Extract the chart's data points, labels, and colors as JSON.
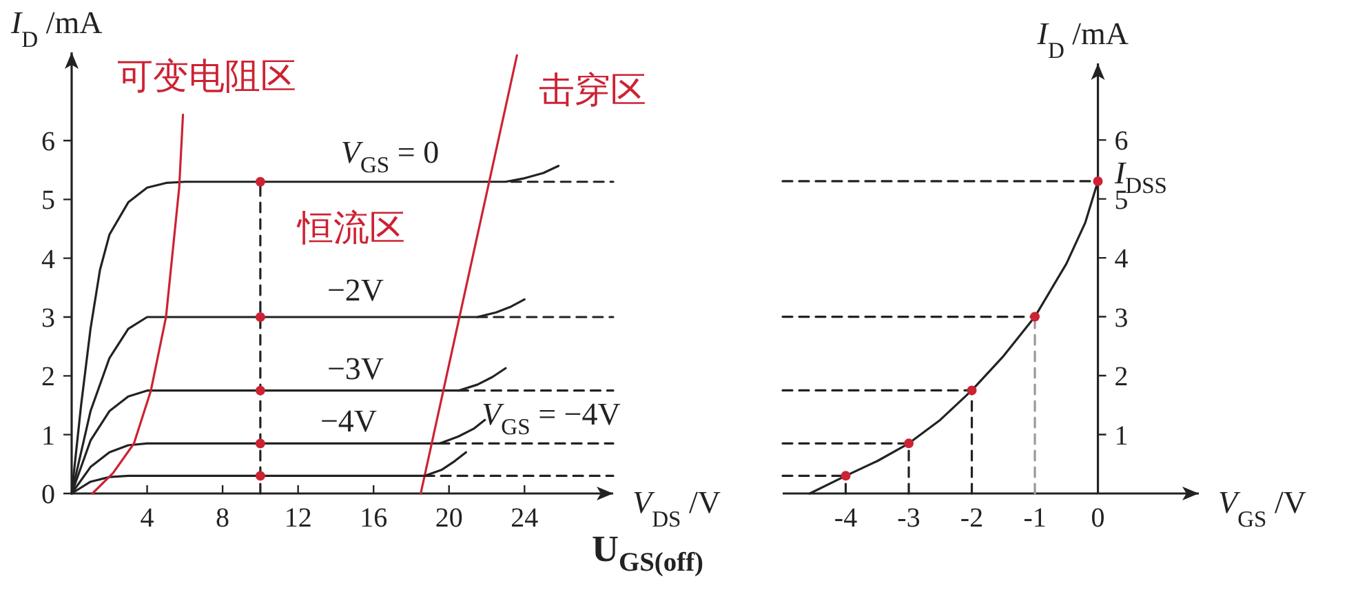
{
  "chart_data": [
    {
      "type": "line",
      "xlabel": "*V*$_{DS}$ /V",
      "ylabel": "*I*$_{D}$ /mA",
      "xlim": [
        0,
        28.7
      ],
      "ylim": [
        0,
        7.5
      ],
      "xticks": [
        4,
        8,
        12,
        16,
        20,
        24
      ],
      "yticks": [
        0,
        1,
        2,
        3,
        4,
        5,
        6
      ],
      "series": [
        {
          "color": "#222222",
          "x": [
            0,
            0.5,
            1,
            1.5,
            2,
            3,
            4,
            5,
            6,
            23,
            24,
            25,
            25.8
          ],
          "values": [
            0,
            1.5,
            2.8,
            3.8,
            4.4,
            4.95,
            5.2,
            5.28,
            5.3,
            5.3,
            5.36,
            5.45,
            5.57
          ]
        },
        {
          "type": "line",
          "color": "#222222",
          "x": [
            0,
            1,
            2,
            3,
            4,
            21.5,
            22.5,
            23.3,
            24
          ],
          "values": [
            0,
            1.4,
            2.3,
            2.8,
            3.0,
            3.0,
            3.08,
            3.18,
            3.3
          ]
        },
        {
          "type": "line",
          "color": "#222222",
          "x": [
            0,
            1,
            2,
            3,
            4,
            20.5,
            21.5,
            22.3,
            23
          ],
          "values": [
            0,
            0.9,
            1.4,
            1.65,
            1.75,
            1.75,
            1.85,
            1.98,
            2.13
          ]
        },
        {
          "type": "line",
          "color": "#222222",
          "x": [
            0,
            1,
            2,
            3,
            4,
            19.5,
            20.5,
            21.3,
            21.9
          ],
          "values": [
            0,
            0.45,
            0.7,
            0.82,
            0.85,
            0.85,
            0.97,
            1.1,
            1.25
          ]
        },
        {
          "type": "line",
          "color": "#222222",
          "x": [
            0,
            1,
            2,
            3,
            18.7,
            19.6,
            20.3,
            20.9
          ],
          "values": [
            0,
            0.2,
            0.28,
            0.3,
            0.3,
            0.4,
            0.55,
            0.7
          ]
        },
        {
          "type": "line",
          "color": "#cc2233",
          "x": [
            1.1,
            2.2,
            3.3,
            4.2,
            5.0,
            5.7,
            5.9
          ],
          "values": [
            0,
            0.35,
            0.85,
            1.75,
            3.0,
            5.2,
            6.44
          ]
        },
        {
          "type": "line",
          "color": "#cc2233",
          "x": [
            18.5,
            23.6
          ],
          "values": [
            0,
            7.45
          ]
        },
        {
          "type": "line",
          "color": "#222222",
          "line_style": "dashed",
          "x": [
            10,
            10
          ],
          "values": [
            0,
            5.3
          ]
        },
        {
          "type": "line",
          "color": "#222222",
          "line_style": "dashed",
          "x": [
            23.3,
            28.7
          ],
          "values": [
            5.3,
            5.3
          ]
        },
        {
          "type": "line",
          "color": "#222222",
          "line_style": "dashed",
          "x": [
            21.5,
            28.7
          ],
          "values": [
            3.0,
            3.0
          ]
        },
        {
          "type": "line",
          "color": "#222222",
          "line_style": "dashed",
          "x": [
            20.5,
            28.7
          ],
          "values": [
            1.75,
            1.75
          ]
        },
        {
          "type": "line",
          "color": "#222222",
          "line_style": "dashed",
          "x": [
            19.5,
            28.7
          ],
          "values": [
            0.85,
            0.85
          ]
        },
        {
          "type": "line",
          "color": "#222222",
          "line_style": "dashed",
          "x": [
            18.7,
            28.7
          ],
          "values": [
            0.3,
            0.3
          ]
        },
        {
          "type": "scatter",
          "color": "#cc2233",
          "marker": "circle",
          "x": [
            10,
            10,
            10,
            10,
            10
          ],
          "values": [
            5.3,
            3.0,
            1.75,
            0.85,
            0.3
          ]
        }
      ],
      "annotations": [
        "可变电阻区",
        "击穿区",
        "恒流区",
        "*V*$_{GS}$ = 0",
        "−2V",
        "−3V",
        "−4V",
        "*V*$_{GS}$ = −4V"
      ]
    },
    {
      "type": "line",
      "xlabel": "*V*$_{GS}$ /V",
      "ylabel": "*I*$_{D}$ /mA",
      "xlim": [
        -5,
        1.6
      ],
      "ylim": [
        0,
        7.3
      ],
      "xticks": [
        -4,
        -3,
        -2,
        -1,
        0
      ],
      "yticks": [
        1,
        2,
        3,
        4,
        5,
        6
      ],
      "series": [
        {
          "color": "#222222",
          "x": [
            -4.57,
            -4,
            -3.5,
            -3,
            -2.5,
            -2,
            -1.5,
            -1,
            -0.5,
            -0.2,
            0
          ],
          "values": [
            0,
            0.3,
            0.55,
            0.85,
            1.25,
            1.75,
            2.33,
            3.0,
            3.9,
            4.6,
            5.3
          ]
        },
        {
          "type": "line",
          "color": "#222222",
          "line_style": "dashed",
          "x": [
            -5,
            0
          ],
          "values": [
            5.3,
            5.3
          ]
        },
        {
          "type": "line",
          "color": "#222222",
          "line_style": "dashed",
          "x": [
            -5,
            -1
          ],
          "values": [
            3.0,
            3.0
          ]
        },
        {
          "type": "line",
          "color": "#222222",
          "line_style": "dashed",
          "x": [
            -5,
            -2
          ],
          "values": [
            1.75,
            1.75
          ]
        },
        {
          "type": "line",
          "color": "#222222",
          "line_style": "dashed",
          "x": [
            -5,
            -3
          ],
          "values": [
            0.85,
            0.85
          ]
        },
        {
          "type": "line",
          "color": "#222222",
          "line_style": "dashed",
          "x": [
            -5,
            -4
          ],
          "values": [
            0.3,
            0.3
          ]
        },
        {
          "type": "line",
          "color": "#222222",
          "line_style": "dashed",
          "x": [
            -4,
            -4
          ],
          "values": [
            0,
            0.3
          ]
        },
        {
          "type": "line",
          "color": "#222222",
          "line_style": "dashed",
          "x": [
            -3,
            -3
          ],
          "values": [
            0,
            0.85
          ]
        },
        {
          "type": "line",
          "color": "#222222",
          "line_style": "dashed",
          "x": [
            -2,
            -2
          ],
          "values": [
            0,
            1.75
          ]
        },
        {
          "type": "line",
          "color": "#999999",
          "line_style": "dashed",
          "x": [
            -1,
            -1
          ],
          "values": [
            0,
            3.0
          ]
        },
        {
          "type": "scatter",
          "color": "#cc2233",
          "marker": "circle",
          "x": [
            -4,
            -3,
            -2,
            -1,
            0
          ],
          "values": [
            0.3,
            0.85,
            1.75,
            3.0,
            5.3
          ]
        }
      ],
      "annotations": [
        "*I*$_{DSS}$",
        "U$_{GS(off)}$"
      ]
    }
  ]
}
